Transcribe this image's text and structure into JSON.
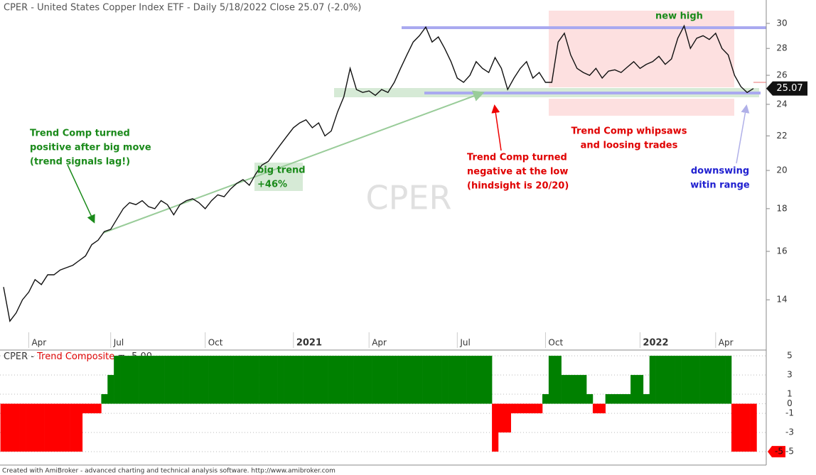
{
  "chart_data": [
    {
      "type": "line",
      "title": "CPER - United States Copper Index ETF - Daily 5/18/2022 Close 25.07 (-2.0%)",
      "watermark": "CPER",
      "categories": [
        null,
        null,
        null,
        null,
        "Apr",
        null,
        null,
        null,
        null,
        null,
        null,
        null,
        null,
        null,
        null,
        null,
        null,
        "Jul",
        null,
        null,
        null,
        null,
        null,
        null,
        null,
        null,
        null,
        null,
        null,
        null,
        null,
        null,
        "Oct",
        null,
        null,
        null,
        null,
        null,
        null,
        null,
        null,
        null,
        null,
        null,
        null,
        null,
        "2021",
        null,
        null,
        null,
        null,
        null,
        null,
        null,
        null,
        null,
        null,
        null,
        "Apr",
        null,
        null,
        null,
        null,
        null,
        null,
        null,
        null,
        null,
        null,
        null,
        null,
        null,
        "Jul",
        null,
        null,
        null,
        null,
        null,
        null,
        null,
        null,
        null,
        null,
        null,
        null,
        null,
        "Oct",
        null,
        null,
        null,
        null,
        null,
        null,
        null,
        null,
        null,
        null,
        null,
        null,
        null,
        null,
        "2022",
        null,
        null,
        null,
        null,
        null,
        null,
        null,
        null,
        null,
        null,
        null,
        "Apr",
        null,
        null,
        null,
        null,
        null,
        null
      ],
      "values": [
        14.5,
        13.2,
        13.5,
        14.0,
        14.3,
        14.8,
        14.6,
        15.0,
        15.0,
        15.2,
        15.3,
        15.4,
        15.6,
        15.8,
        16.3,
        16.5,
        16.9,
        17.0,
        17.5,
        18.0,
        18.3,
        18.2,
        18.4,
        18.1,
        18.0,
        18.4,
        18.2,
        17.7,
        18.2,
        18.4,
        18.5,
        18.3,
        18.0,
        18.4,
        18.7,
        18.6,
        19.0,
        19.3,
        19.5,
        19.2,
        19.8,
        20.3,
        20.5,
        21.0,
        21.5,
        22.0,
        22.5,
        22.8,
        23.0,
        22.5,
        22.8,
        22.0,
        22.3,
        23.5,
        24.5,
        26.5,
        25.0,
        24.8,
        24.9,
        24.6,
        25.0,
        24.8,
        25.5,
        26.5,
        27.5,
        28.5,
        29.0,
        29.7,
        28.5,
        28.9,
        28.0,
        27.0,
        25.8,
        25.5,
        26.0,
        27.0,
        26.5,
        26.2,
        27.3,
        26.5,
        25.0,
        25.8,
        26.5,
        27.0,
        25.8,
        26.2,
        25.5,
        25.5,
        28.5,
        29.2,
        27.5,
        26.5,
        26.2,
        26.0,
        26.5,
        25.8,
        26.3,
        26.4,
        26.2,
        26.6,
        27.0,
        26.5,
        26.8,
        27.0,
        27.4,
        26.8,
        27.2,
        28.8,
        29.8,
        28.0,
        28.8,
        29.0,
        28.7,
        29.2,
        28.0,
        27.5,
        26.0,
        25.2,
        24.8,
        25.07
      ],
      "color": "#111111",
      "log_scale": true,
      "ylim": [
        12.8,
        32
      ],
      "yticks": [
        14,
        16,
        18,
        20,
        22,
        24,
        26,
        28,
        30
      ],
      "annotations": [
        {
          "lines": [
            "Trend Comp turned",
            "positive after big move",
            "(trend signals lag!)"
          ],
          "color": "#1a8a1a"
        },
        {
          "lines": [
            "big trend",
            "+46%"
          ],
          "color": "#1a8a1a"
        },
        {
          "lines": [
            "Trend Comp turned",
            "negative at the low",
            "(hindsight is 20/20)"
          ],
          "color": "#e00000"
        },
        {
          "lines": [
            "Trend Comp whipsaws",
            "and loosing trades"
          ],
          "color": "#e00000"
        },
        {
          "lines": [
            "new high"
          ],
          "color": "#1a8a1a"
        },
        {
          "lines": [
            "downswing",
            "witin range"
          ],
          "color": "#2020d0"
        }
      ],
      "footer": "Created with AmiBroker - advanced charting and technical analysis software. http://www.amibroker.com"
    },
    {
      "type": "bar",
      "title": [
        "CPER - ",
        "Trend Composite",
        " = -5.00"
      ],
      "title_colors": [
        "#333333",
        "#e00000",
        "#333333"
      ],
      "values": [
        -5,
        -5,
        -5,
        -5,
        -5,
        -5,
        -5,
        -5,
        -5,
        -5,
        -5,
        -5,
        -5,
        -1,
        -1,
        -1,
        1,
        3,
        5,
        5,
        5,
        5,
        5,
        5,
        5,
        5,
        5,
        5,
        5,
        5,
        5,
        5,
        5,
        5,
        5,
        5,
        5,
        5,
        5,
        5,
        5,
        5,
        5,
        5,
        5,
        5,
        5,
        5,
        5,
        5,
        5,
        5,
        5,
        5,
        5,
        5,
        5,
        5,
        5,
        5,
        5,
        5,
        5,
        5,
        5,
        5,
        5,
        5,
        5,
        5,
        5,
        5,
        5,
        5,
        5,
        5,
        5,
        5,
        -5,
        -3,
        -3,
        -1,
        -1,
        -1,
        -1,
        -1,
        1,
        5,
        5,
        3,
        3,
        3,
        3,
        1,
        -1,
        -1,
        1,
        1,
        1,
        1,
        3,
        3,
        1,
        5,
        5,
        5,
        5,
        5,
        5,
        5,
        5,
        5,
        5,
        5,
        5,
        5,
        -5,
        -5,
        -5,
        -5
      ],
      "positive_color": "#008000",
      "negative_color": "#ff0000",
      "ylim": [
        -6.4,
        5.6
      ],
      "yticks": [
        5,
        3,
        1,
        0,
        -1,
        -3,
        -5
      ],
      "grid": true
    }
  ]
}
